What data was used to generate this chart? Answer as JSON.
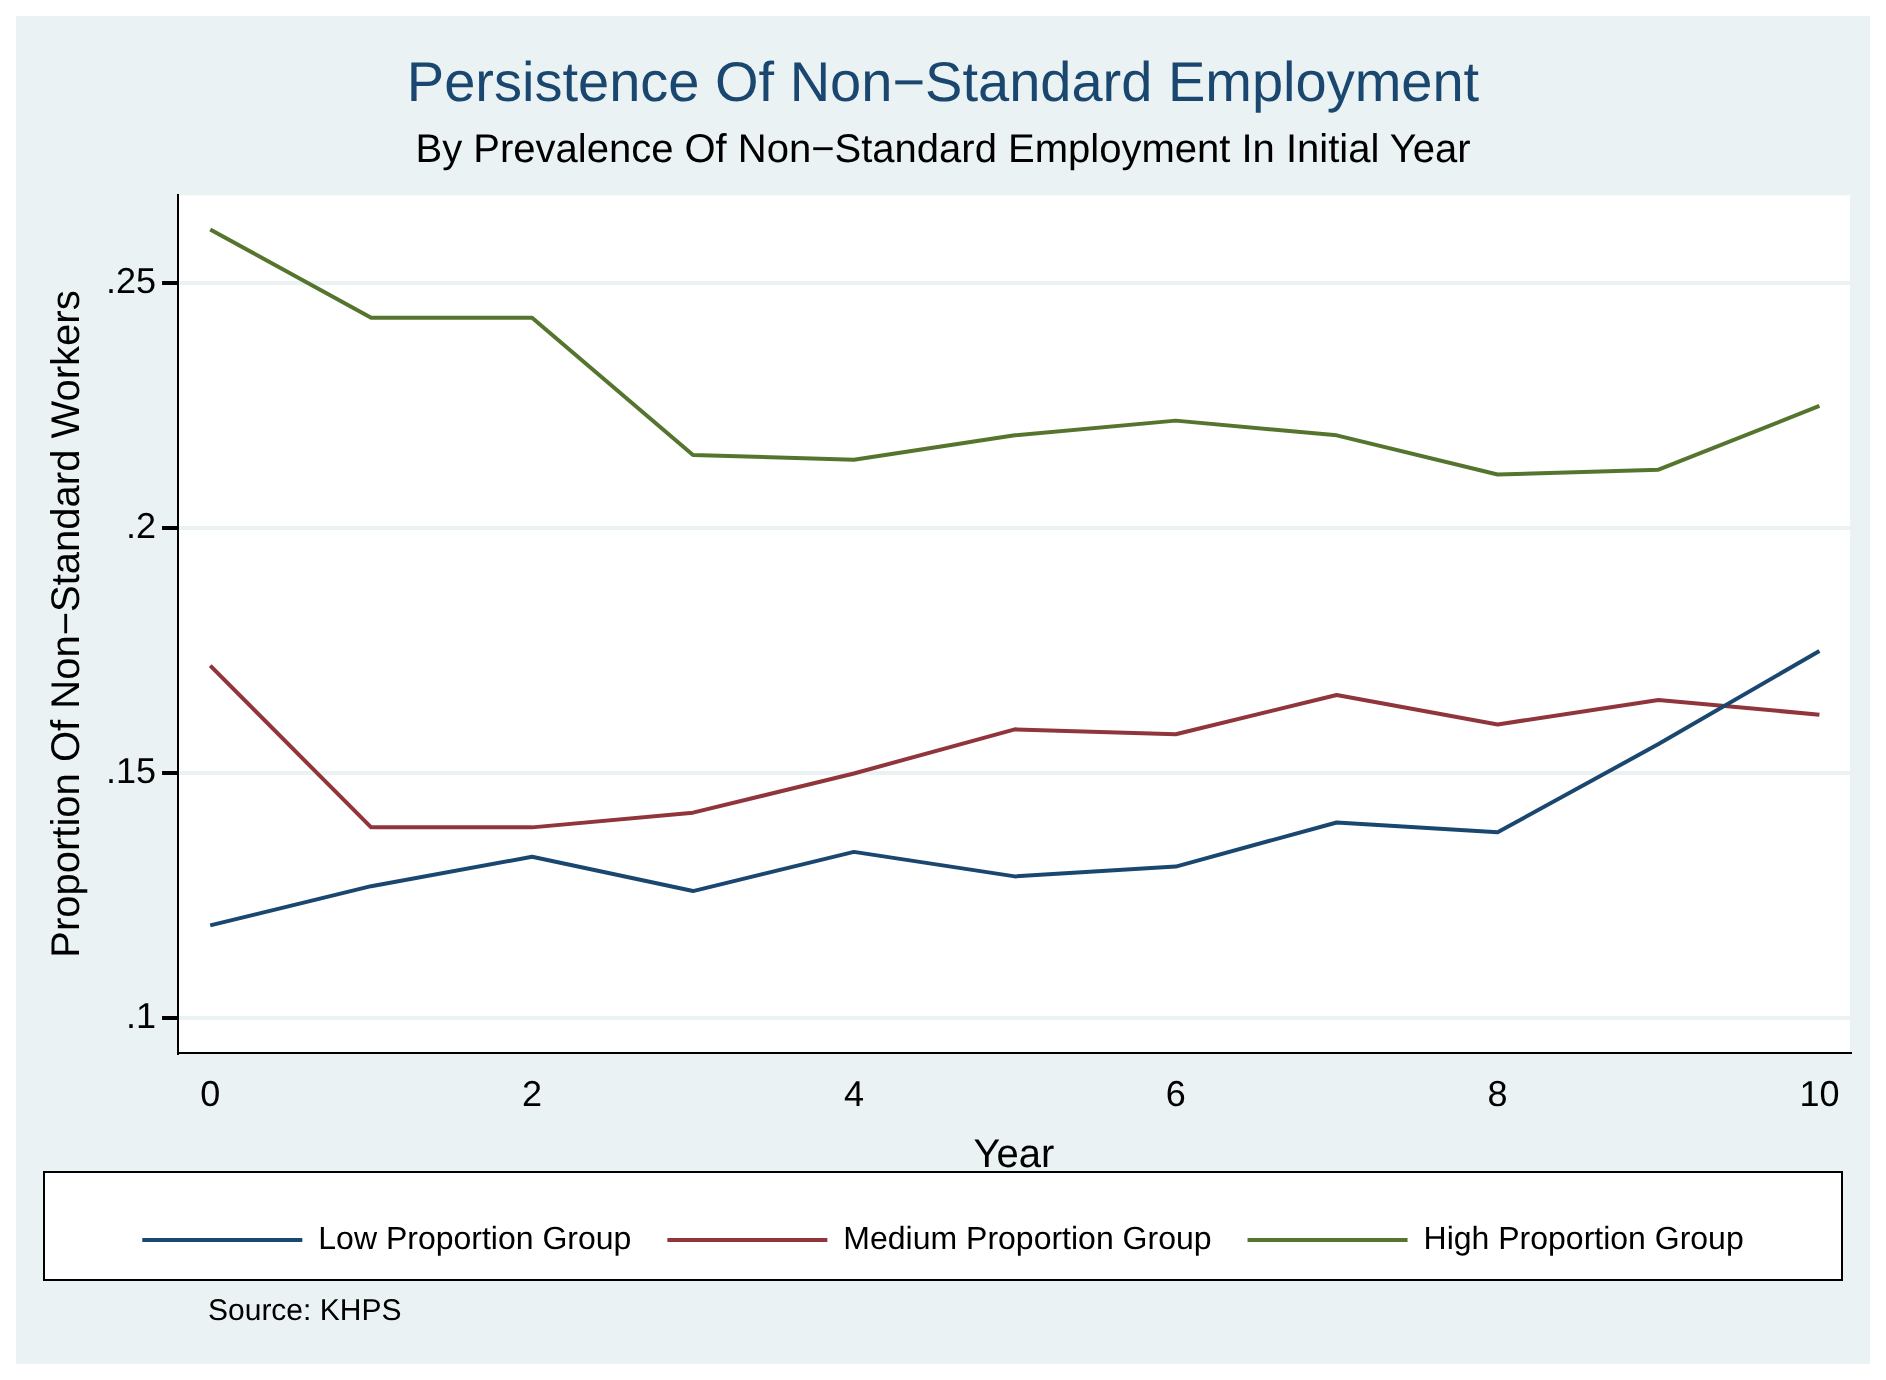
{
  "chart_data": {
    "type": "line",
    "title": "Persistence Of Non−Standard Employment",
    "subtitle": "By Prevalence Of Non−Standard Employment In Initial Year",
    "xlabel": "Year",
    "ylabel": "Proportion Of Non−Standard Workers",
    "x": [
      0,
      1,
      2,
      3,
      4,
      5,
      6,
      7,
      8,
      9,
      10
    ],
    "series": [
      {
        "name": "Low Proportion Group",
        "color": "#1a476f",
        "values": [
          0.119,
          0.127,
          0.133,
          0.126,
          0.134,
          0.129,
          0.131,
          0.14,
          0.138,
          0.156,
          0.175
        ]
      },
      {
        "name": "Medium Proportion Group",
        "color": "#90353b",
        "values": [
          0.172,
          0.139,
          0.139,
          0.142,
          0.15,
          0.159,
          0.158,
          0.166,
          0.16,
          0.165,
          0.162
        ]
      },
      {
        "name": "High Proportion Group",
        "color": "#55752f",
        "values": [
          0.261,
          0.243,
          0.243,
          0.215,
          0.214,
          0.219,
          0.222,
          0.219,
          0.211,
          0.212,
          0.225
        ]
      }
    ],
    "xlim": [
      -0.2,
      10.19
    ],
    "xticks": [
      0,
      2,
      4,
      6,
      8,
      10
    ],
    "ylim": [
      0.093,
      0.268
    ],
    "yticks": [
      {
        "value": 0.1,
        "label": ".1"
      },
      {
        "value": 0.15,
        "label": ".15"
      },
      {
        "value": 0.2,
        "label": ".2"
      },
      {
        "value": 0.25,
        "label": ".25"
      }
    ],
    "grid": "y",
    "legend": "bottom",
    "marker": "none",
    "line_style": "solid",
    "annotations": [
      "Source: KHPS"
    ]
  }
}
